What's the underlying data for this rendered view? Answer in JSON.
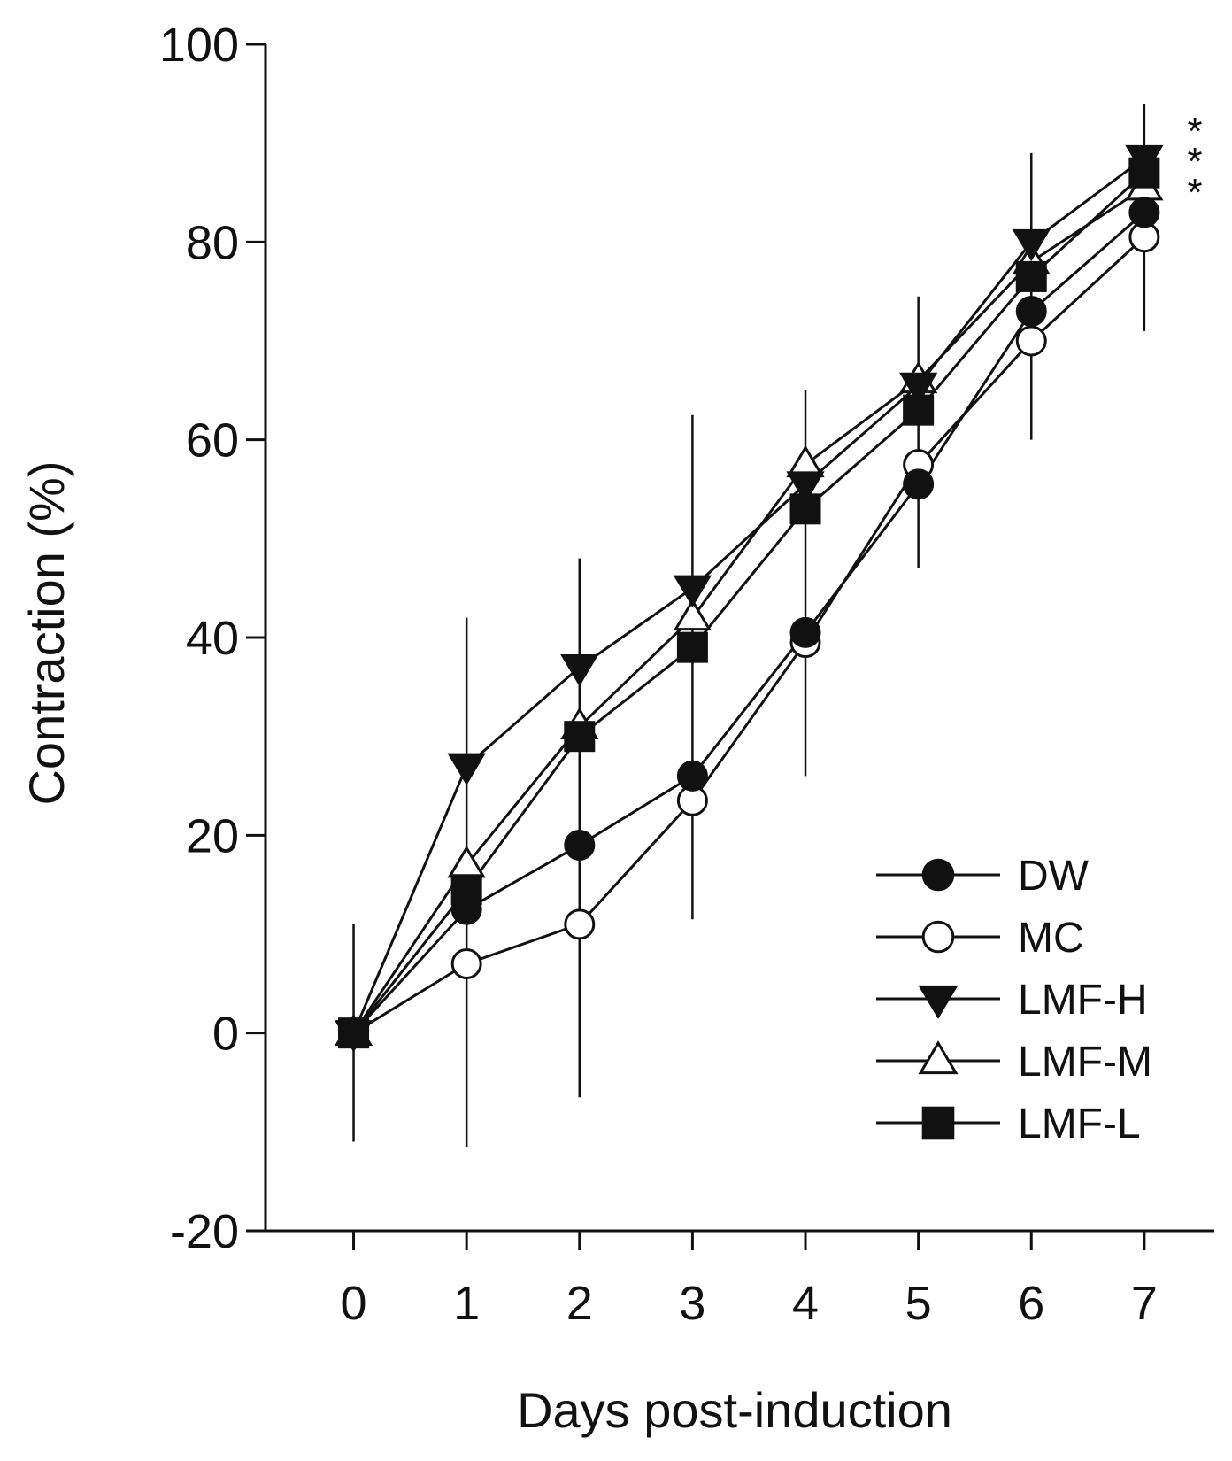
{
  "chart_data": {
    "type": "line",
    "title": "",
    "xlabel": "Days post-induction",
    "ylabel": "Contraction (%)",
    "x": [
      0,
      1,
      2,
      3,
      4,
      5,
      6,
      7
    ],
    "xlim": [
      -0.78,
      7.62
    ],
    "ylim": [
      -20,
      100
    ],
    "yticks": [
      -20,
      0,
      20,
      40,
      60,
      80,
      100
    ],
    "ytick_labels": [
      "-20",
      "0",
      "20",
      "40",
      "60",
      "80",
      "100"
    ],
    "xtick_labels": [
      "0",
      "1",
      "2",
      "3",
      "4",
      "5",
      "6",
      "7"
    ],
    "significance": [
      "*",
      "*",
      "*"
    ],
    "legend_position": "bottom-right",
    "series": [
      {
        "name": "DW",
        "marker": "circle",
        "filled": true,
        "values": [
          0,
          12.5,
          19,
          26,
          40.5,
          55.5,
          73,
          83
        ]
      },
      {
        "name": "MC",
        "marker": "circle",
        "filled": false,
        "values": [
          0,
          7,
          11,
          23.5,
          39.5,
          57.5,
          70,
          80.5
        ]
      },
      {
        "name": "LMF-H",
        "marker": "triangle-down",
        "filled": true,
        "values": [
          0,
          27,
          37,
          45,
          55.5,
          65.5,
          80,
          88.5
        ]
      },
      {
        "name": "LMF-M",
        "marker": "triangle-up",
        "filled": false,
        "values": [
          0,
          17,
          31,
          42,
          57.5,
          66,
          78,
          85.5
        ]
      },
      {
        "name": "LMF-L",
        "marker": "square",
        "filled": true,
        "values": [
          0,
          14.5,
          30,
          39,
          53,
          63,
          76.5,
          87
        ]
      }
    ],
    "error_bars": {
      "lower": [
        -11,
        -11.5,
        -6.5,
        11.5,
        26,
        47,
        60,
        71
      ],
      "upper": [
        11,
        42,
        48,
        62.5,
        65,
        74.5,
        89,
        94
      ]
    }
  }
}
